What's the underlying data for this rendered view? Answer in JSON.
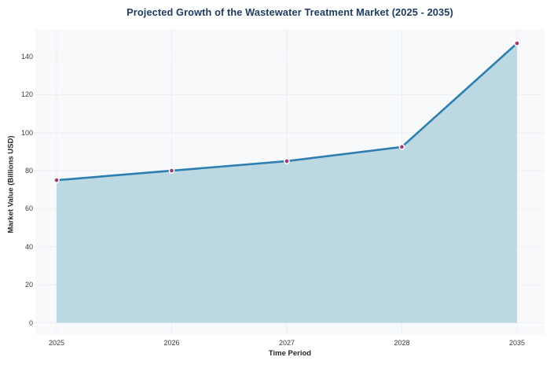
{
  "chart_data": {
    "type": "area",
    "title": "Projected Growth of the Wastewater Treatment Market (2025 - 2035)",
    "categories": [
      "2025",
      "2026",
      "2027",
      "2028",
      "2035"
    ],
    "values": [
      75,
      80,
      85,
      92.5,
      147
    ],
    "xlabel": "Time Period",
    "ylabel": "Market Value (Billions USD)",
    "yticks": [
      0,
      20,
      40,
      60,
      80,
      100,
      120,
      140
    ],
    "ylim": [
      0,
      154
    ],
    "grid": true,
    "legend": false,
    "colors": {
      "line": "#2e7eb0",
      "fill": "#bcd8e3",
      "marker": "#a23b72",
      "marker_edge": "#ffffff",
      "plot_background": "#f7f9fb",
      "gridline": "#edf0f4",
      "title_text": "#1e3a5f",
      "tick_text": "#3c3c3c",
      "axis_label_text": "#262626"
    }
  }
}
